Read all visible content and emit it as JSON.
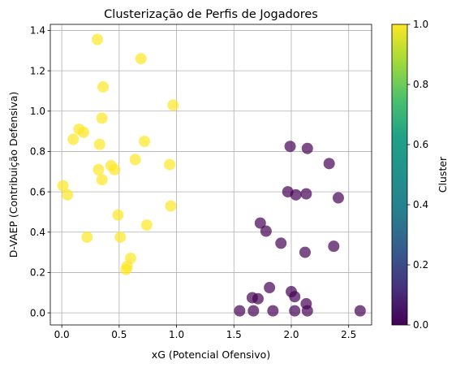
{
  "chart_data": {
    "type": "scatter",
    "title": "Clusterização de Perfis de Jogadores",
    "xlabel": "xG (Potencial Ofensivo)",
    "ylabel": "D-VAEP (Contribuição Defensiva)",
    "xlim": [
      -0.1,
      2.7
    ],
    "ylim": [
      -0.06,
      1.43
    ],
    "xticks": [
      0.0,
      0.5,
      1.0,
      1.5,
      2.0,
      2.5
    ],
    "xtick_labels": [
      "0.0",
      "0.5",
      "1.0",
      "1.5",
      "2.0",
      "2.5"
    ],
    "yticks": [
      0.0,
      0.2,
      0.4,
      0.6,
      0.8,
      1.0,
      1.2,
      1.4
    ],
    "ytick_labels": [
      "0.0",
      "0.2",
      "0.4",
      "0.6",
      "0.8",
      "1.0",
      "1.2",
      "1.4"
    ],
    "grid": true,
    "marker_alpha": 0.7,
    "colorbar": {
      "label": "Cluster",
      "colormap": "viridis",
      "range": [
        0.0,
        1.0
      ],
      "ticks": [
        0.0,
        0.2,
        0.4,
        0.6,
        0.8,
        1.0
      ],
      "tick_labels": [
        "0.0",
        "0.2",
        "0.4",
        "0.6",
        "0.8",
        "1.0"
      ]
    },
    "cluster_colors": {
      "0": "#440154",
      "1": "#fde725"
    },
    "series": [
      {
        "cluster": 1,
        "points": [
          [
            0.31,
            1.355
          ],
          [
            0.69,
            1.26
          ],
          [
            0.36,
            1.12
          ],
          [
            0.97,
            1.03
          ],
          [
            0.35,
            0.965
          ],
          [
            0.15,
            0.91
          ],
          [
            0.19,
            0.895
          ],
          [
            0.1,
            0.86
          ],
          [
            0.72,
            0.85
          ],
          [
            0.33,
            0.835
          ],
          [
            0.64,
            0.76
          ],
          [
            0.43,
            0.73
          ],
          [
            0.94,
            0.735
          ],
          [
            0.32,
            0.71
          ],
          [
            0.46,
            0.71
          ],
          [
            0.35,
            0.66
          ],
          [
            0.01,
            0.63
          ],
          [
            0.05,
            0.585
          ],
          [
            0.95,
            0.53
          ],
          [
            0.49,
            0.485
          ],
          [
            0.74,
            0.435
          ],
          [
            0.22,
            0.375
          ],
          [
            0.51,
            0.375
          ],
          [
            0.6,
            0.27
          ],
          [
            0.57,
            0.23
          ],
          [
            0.56,
            0.215
          ]
        ]
      },
      {
        "cluster": 0,
        "points": [
          [
            1.99,
            0.825
          ],
          [
            2.14,
            0.815
          ],
          [
            2.33,
            0.74
          ],
          [
            1.97,
            0.6
          ],
          [
            2.04,
            0.585
          ],
          [
            2.13,
            0.59
          ],
          [
            2.41,
            0.57
          ],
          [
            1.73,
            0.445
          ],
          [
            1.78,
            0.405
          ],
          [
            1.91,
            0.345
          ],
          [
            2.37,
            0.33
          ],
          [
            2.12,
            0.3
          ],
          [
            1.81,
            0.125
          ],
          [
            2.0,
            0.105
          ],
          [
            1.66,
            0.075
          ],
          [
            1.71,
            0.07
          ],
          [
            2.03,
            0.08
          ],
          [
            2.13,
            0.045
          ],
          [
            1.55,
            0.01
          ],
          [
            1.67,
            0.01
          ],
          [
            1.84,
            0.01
          ],
          [
            2.03,
            0.01
          ],
          [
            2.14,
            0.01
          ],
          [
            2.6,
            0.01
          ]
        ]
      }
    ]
  }
}
